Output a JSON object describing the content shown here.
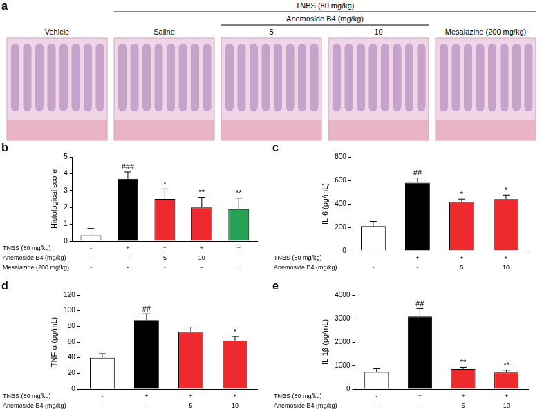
{
  "panel_a": {
    "panel_label": "a",
    "header": "TNBS (80 mg/kg)",
    "subheader": "Anemoside B4 (mg/kg)",
    "columns": [
      "Vehicle",
      "Saline",
      "5",
      "10",
      "Mesalazine (200 mg/kg)"
    ]
  },
  "chart_data": [
    {
      "type": "bar",
      "panel_label": "b",
      "y_label": "Histological score",
      "row_labels": [
        "TNBS (80 mg/kg)",
        "Anemoside B4 (mg/kg)",
        "Mesalazine (200 mg/kg)"
      ],
      "categories": [
        [
          "-",
          "-",
          "-"
        ],
        [
          "+",
          "-",
          "-"
        ],
        [
          "+",
          "5",
          "-"
        ],
        [
          "+",
          "10",
          "-"
        ],
        [
          "+",
          "-",
          "+"
        ]
      ],
      "values": [
        0.35,
        3.7,
        2.5,
        2.0,
        1.9
      ],
      "errors": [
        0.4,
        0.4,
        0.6,
        0.6,
        0.65
      ],
      "significance": [
        null,
        "###",
        "*",
        "**",
        "**"
      ],
      "colors": [
        "#ffffff",
        "#000000",
        "#ee2a2f",
        "#ee2a2f",
        "#27a055"
      ],
      "ylim": [
        0,
        5
      ],
      "yticks": [
        0,
        1,
        2,
        3,
        4,
        5
      ],
      "grid": false
    },
    {
      "type": "bar",
      "panel_label": "c",
      "y_label": "IL-6 (pg/mL)",
      "row_labels": [
        "TNBS (80 mg/kg)",
        "Anemoside B4 (mg/kg)"
      ],
      "categories": [
        [
          "-",
          "-"
        ],
        [
          "+",
          "-"
        ],
        [
          "+",
          "5"
        ],
        [
          "+",
          "10"
        ]
      ],
      "values": [
        210,
        580,
        415,
        440
      ],
      "errors": [
        40,
        40,
        25,
        35
      ],
      "significance": [
        null,
        "##",
        "*",
        "*"
      ],
      "colors": [
        "#ffffff",
        "#000000",
        "#ee2a2f",
        "#ee2a2f"
      ],
      "ylim": [
        0,
        800
      ],
      "yticks": [
        0,
        200,
        400,
        600,
        800
      ],
      "grid": false
    },
    {
      "type": "bar",
      "panel_label": "d",
      "y_label": "TNF-α (pg/mL)",
      "row_labels": [
        "TNBS (80 mg/kg)",
        "Anemoside B4 (mg/kg)"
      ],
      "categories": [
        [
          "-",
          "-"
        ],
        [
          "+",
          "-"
        ],
        [
          "+",
          "5"
        ],
        [
          "+",
          "10"
        ]
      ],
      "values": [
        40,
        88,
        73,
        62
      ],
      "errors": [
        5,
        8,
        6,
        5
      ],
      "significance": [
        null,
        "##",
        null,
        "*"
      ],
      "colors": [
        "#ffffff",
        "#000000",
        "#ee2a2f",
        "#ee2a2f"
      ],
      "ylim": [
        0,
        120
      ],
      "yticks": [
        0,
        20,
        40,
        60,
        80,
        100,
        120
      ],
      "grid": false
    },
    {
      "type": "bar",
      "panel_label": "e",
      "y_label": "IL-1β (pg/mL)",
      "row_labels": [
        "TNBS (80 mg/kg)",
        "Anemoside B4 (mg/kg)"
      ],
      "categories": [
        [
          "-",
          "-"
        ],
        [
          "+",
          "-"
        ],
        [
          "+",
          "5"
        ],
        [
          "+",
          "10"
        ]
      ],
      "values": [
        720,
        3080,
        850,
        700
      ],
      "errors": [
        150,
        350,
        80,
        100
      ],
      "significance": [
        null,
        "##",
        "**",
        "**"
      ],
      "colors": [
        "#ffffff",
        "#000000",
        "#ee2a2f",
        "#ee2a2f"
      ],
      "ylim": [
        0,
        4000
      ],
      "yticks": [
        0,
        1000,
        2000,
        3000,
        4000
      ],
      "grid": false
    }
  ]
}
